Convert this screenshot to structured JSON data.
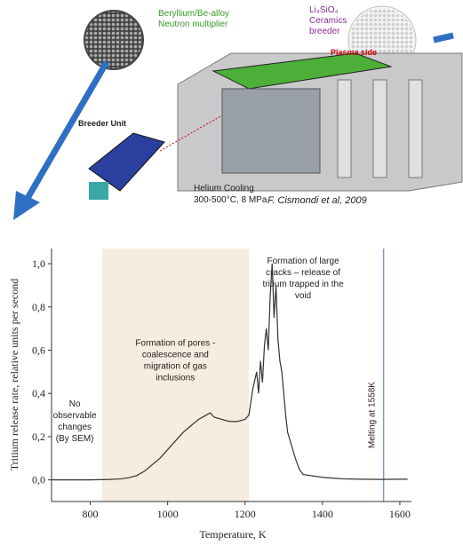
{
  "diagram": {
    "labels": {
      "multiplier": [
        "Beryllium/Be-alloy",
        "Neutron multiplier"
      ],
      "breeder": [
        "Li₄SiO₄",
        "Ceramics",
        "breeder"
      ],
      "plasma_side": "Plasma side",
      "breeder_unit": "Breeder Unit",
      "cooling": [
        "Helium Cooling",
        "300-500°C, 8 MPa"
      ],
      "credit": "F. Cismondi et al, 2009"
    }
  },
  "chart_data": {
    "type": "line",
    "x_label": "Temperature, K",
    "y_label": "Tritium release rate, relative units per second",
    "x": [
      700,
      750,
      800,
      850,
      880,
      900,
      920,
      940,
      960,
      980,
      1000,
      1020,
      1040,
      1060,
      1080,
      1100,
      1110,
      1120,
      1140,
      1160,
      1180,
      1200,
      1210,
      1220,
      1230,
      1235,
      1240,
      1245,
      1250,
      1255,
      1260,
      1265,
      1270,
      1275,
      1280,
      1285,
      1290,
      1295,
      1300,
      1305,
      1310,
      1320,
      1330,
      1340,
      1350,
      1400,
      1450,
      1500,
      1550,
      1600,
      1620
    ],
    "values": [
      0,
      0,
      0,
      0.002,
      0.005,
      0.01,
      0.02,
      0.04,
      0.07,
      0.1,
      0.14,
      0.18,
      0.22,
      0.25,
      0.28,
      0.3,
      0.31,
      0.29,
      0.28,
      0.27,
      0.27,
      0.28,
      0.3,
      0.42,
      0.5,
      0.4,
      0.55,
      0.45,
      0.62,
      0.7,
      0.6,
      0.85,
      1.0,
      0.75,
      0.9,
      0.65,
      0.55,
      0.5,
      0.4,
      0.3,
      0.22,
      0.16,
      0.1,
      0.05,
      0.025,
      0.012,
      0.005,
      0.003,
      0.002,
      0.003,
      0.003
    ],
    "color": "#333333",
    "xlim": [
      700,
      1630
    ],
    "ylim": [
      -0.1,
      1.07
    ],
    "xticks": [
      800,
      1000,
      1200,
      1400,
      1600
    ],
    "yticks": [
      {
        "value": 0,
        "label": "0,0"
      },
      {
        "value": 0.2,
        "label": "0,2"
      },
      {
        "value": 0.4,
        "label": "0,4"
      },
      {
        "value": 0.6,
        "label": "0,6"
      },
      {
        "value": 0.8,
        "label": "0,8"
      },
      {
        "value": 1,
        "label": "1,0"
      }
    ],
    "band": {
      "from": 830,
      "to": 1210,
      "color": "#f6ecdf"
    },
    "vline": {
      "value": 1558,
      "color": "#7f95c8",
      "label": "Melting at 1558K"
    },
    "annotations": [
      {
        "x": 760,
        "y": 0.34,
        "lines": [
          "No",
          "observable",
          "changes",
          "(By SEM)"
        ]
      },
      {
        "x": 1020,
        "y": 0.62,
        "lines": [
          "Formation of pores -",
          "coalescence and",
          "migration of gas",
          "inclusions"
        ]
      },
      {
        "x": 1350,
        "y": 1.0,
        "lines": [
          "Formation of large",
          "cracks – release of",
          "tritium trapped in the",
          "void"
        ]
      }
    ]
  }
}
